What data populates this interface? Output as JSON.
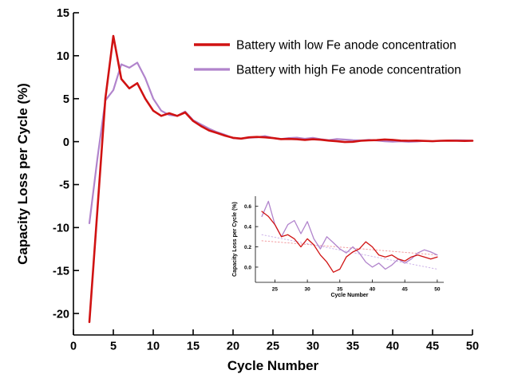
{
  "chart_data": {
    "type": "line",
    "title": "",
    "xlabel": "Cycle Number",
    "ylabel": "Capacity Loss per Cycle (%)",
    "xlim": [
      0,
      50
    ],
    "ylim": [
      -22.5,
      15
    ],
    "xticks": [
      0,
      5,
      10,
      15,
      20,
      25,
      30,
      35,
      40,
      45,
      50
    ],
    "yticks": [
      -20,
      -15,
      -10,
      -5,
      0,
      5,
      10,
      15
    ],
    "grid": false,
    "legend_position": "top-right-inside",
    "x": [
      2,
      3,
      4,
      5,
      6,
      7,
      8,
      9,
      10,
      11,
      12,
      13,
      14,
      15,
      16,
      17,
      18,
      19,
      20,
      21,
      22,
      23,
      24,
      25,
      26,
      27,
      28,
      29,
      30,
      31,
      32,
      33,
      34,
      35,
      36,
      37,
      38,
      39,
      40,
      41,
      42,
      43,
      44,
      45,
      46,
      47,
      48,
      49,
      50
    ],
    "series": [
      {
        "name": "Battery with low Fe anode concentration",
        "color": "#d01212",
        "width": 2.6,
        "y": [
          -21.0,
          -8.0,
          5.0,
          12.3,
          7.3,
          6.2,
          6.8,
          5.0,
          3.6,
          3.0,
          3.3,
          3.0,
          3.4,
          2.4,
          1.8,
          1.3,
          1.0,
          0.7,
          0.45,
          0.35,
          0.5,
          0.55,
          0.5,
          0.42,
          0.3,
          0.32,
          0.28,
          0.2,
          0.28,
          0.22,
          0.12,
          0.05,
          -0.05,
          -0.02,
          0.1,
          0.15,
          0.18,
          0.25,
          0.2,
          0.12,
          0.1,
          0.12,
          0.08,
          0.06,
          0.1,
          0.12,
          0.1,
          0.08,
          0.1
        ]
      },
      {
        "name": "Battery with high Fe anode concentration",
        "color": "#b184cc",
        "width": 2.2,
        "y": [
          -9.5,
          -2.0,
          4.8,
          6.0,
          9.0,
          8.6,
          9.2,
          7.4,
          5.0,
          3.6,
          3.1,
          3.0,
          3.5,
          2.5,
          2.0,
          1.5,
          1.1,
          0.8,
          0.4,
          0.35,
          0.45,
          0.5,
          0.65,
          0.42,
          0.3,
          0.42,
          0.46,
          0.33,
          0.45,
          0.28,
          0.18,
          0.3,
          0.24,
          0.18,
          0.14,
          0.2,
          0.14,
          0.05,
          0.0,
          0.04,
          -0.02,
          0.02,
          0.08,
          0.04,
          0.08,
          0.14,
          0.17,
          0.15,
          0.12
        ]
      }
    ],
    "inset": {
      "xlabel": "Cycle Number",
      "ylabel": "Capacity Loss per Cycle (%)",
      "xlim": [
        22,
        51
      ],
      "ylim": [
        -0.15,
        0.7
      ],
      "xticks": [
        25,
        30,
        35,
        40,
        45,
        50
      ],
      "yticks": [
        0.0,
        0.2,
        0.4,
        0.6
      ],
      "x_start": 23,
      "trend_lines": [
        {
          "name": "low Fe trend",
          "color": "#f29ca0",
          "x": [
            23,
            50
          ],
          "y": [
            0.26,
            0.12
          ]
        },
        {
          "name": "high Fe trend",
          "color": "#cdb4e8",
          "x": [
            23,
            50
          ],
          "y": [
            0.32,
            -0.02
          ]
        }
      ]
    }
  }
}
